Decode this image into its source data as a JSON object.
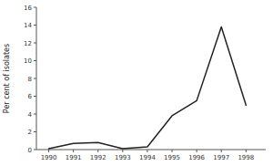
{
  "chart_data": {
    "type": "line",
    "y_label": "Per cent of isolates",
    "x": [
      1990,
      1991,
      1992,
      1993,
      1994,
      1995,
      1996,
      1997,
      1998
    ],
    "values": [
      0.1,
      0.7,
      0.8,
      0.1,
      0.3,
      3.8,
      5.5,
      13.8,
      5.0
    ],
    "color": "#222222",
    "xlim": [
      1989.5,
      1998.8
    ],
    "ylim": [
      0,
      16
    ],
    "xticks": [
      1990,
      1991,
      1992,
      1993,
      1994,
      1995,
      1996,
      1997,
      1998
    ],
    "yticks": [
      0,
      2,
      4,
      6,
      8,
      10,
      12,
      14,
      16
    ]
  }
}
